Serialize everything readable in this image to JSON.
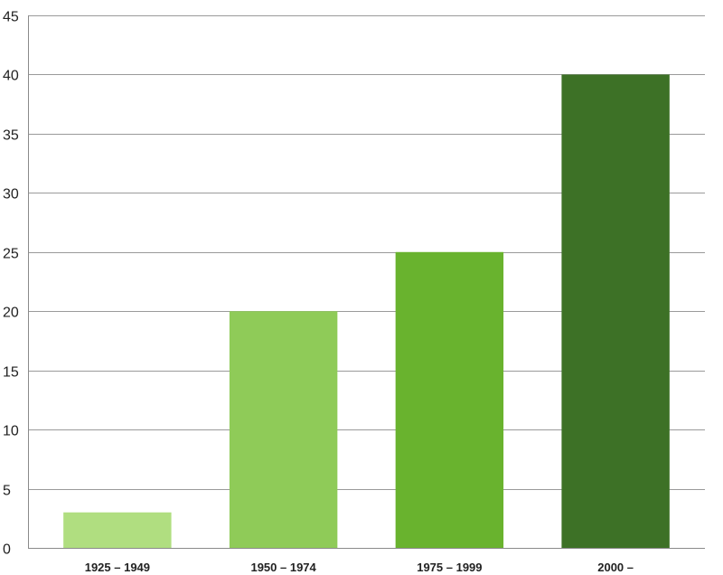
{
  "chart_data": {
    "type": "bar",
    "title": "",
    "xlabel": "",
    "ylabel": "",
    "categories": [
      "1925 – 1949",
      "1950 – 1974",
      "1975 – 1999",
      "2000 –"
    ],
    "values": [
      3,
      20,
      25,
      40
    ],
    "ylim": [
      0,
      45
    ],
    "yticks": [
      0,
      5,
      10,
      15,
      20,
      25,
      30,
      35,
      40,
      45
    ],
    "grid": true,
    "legend": "none",
    "bar_colors": [
      "#b0de80",
      "#8fcb58",
      "#69b32e",
      "#3d7126"
    ]
  }
}
